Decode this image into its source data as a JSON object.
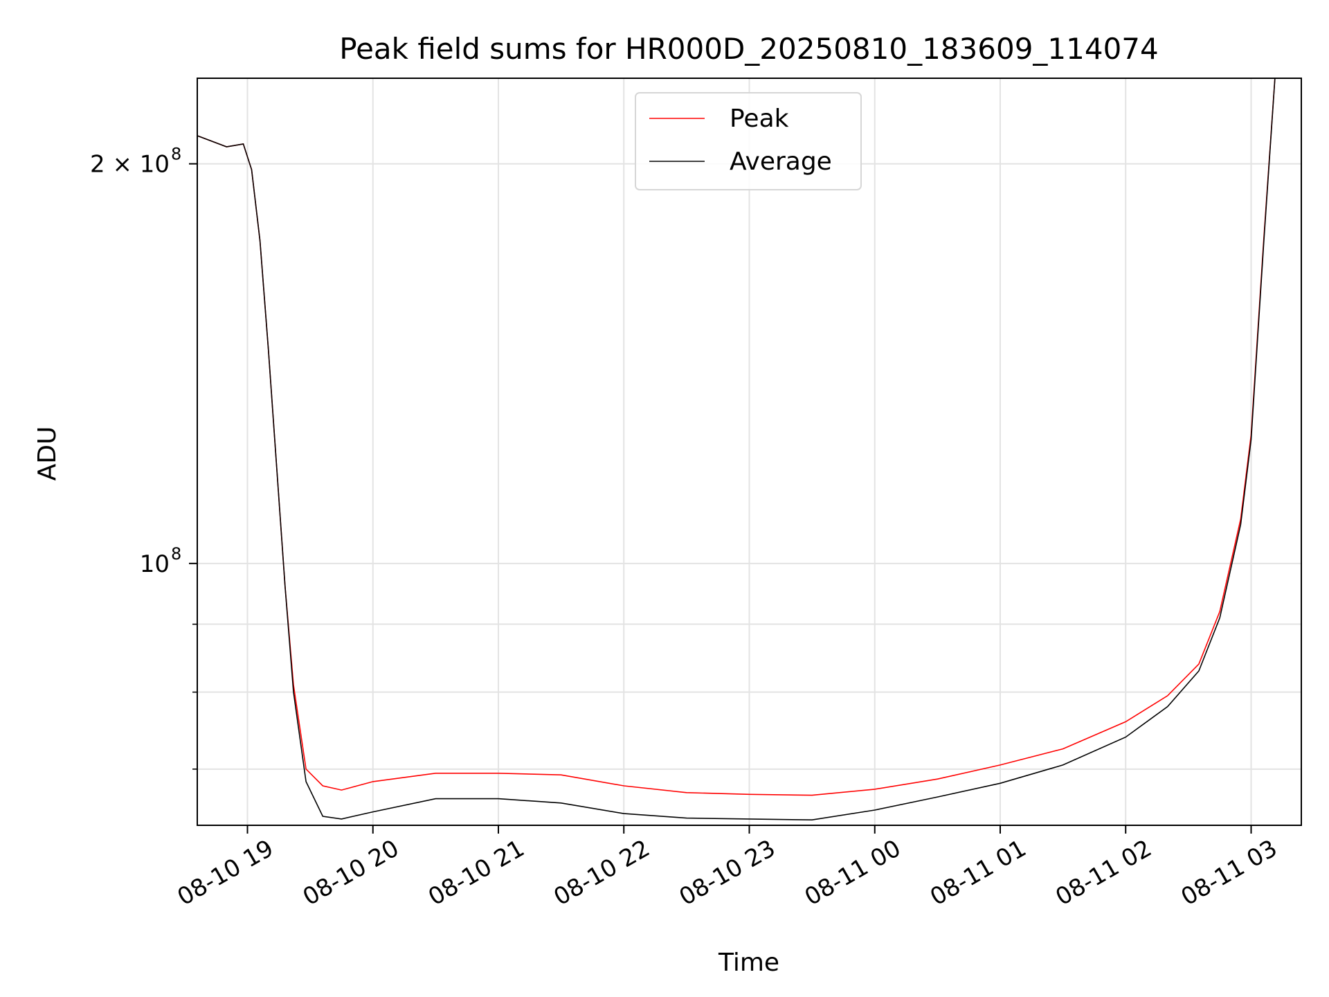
{
  "chart_data": {
    "type": "line",
    "title": "Peak field sums for HR000D_20250810_183609_114074",
    "xlabel": "Time",
    "ylabel": "ADU",
    "yscale": "log",
    "ylim": [
      63500000,
      232000000
    ],
    "xlim": [
      "2025-08-10 18:36",
      "2025-08-11 03:24"
    ],
    "grid": true,
    "legend": "upper center",
    "x_ticks": [
      "08-10 19",
      "08-10 20",
      "08-10 21",
      "08-10 22",
      "08-10 23",
      "08-11 00",
      "08-11 01",
      "08-11 02",
      "08-11 03"
    ],
    "y_tick_major": [
      {
        "value": 100000000,
        "base": "10",
        "exp": "8"
      },
      {
        "value": 200000000,
        "base": "2 × 10",
        "exp": "8"
      }
    ],
    "y_tick_minor": [
      70000000,
      80000000,
      90000000
    ],
    "series": [
      {
        "name": "Peak",
        "color": "#ff0000",
        "x": [
          "2025-08-10 18:36",
          "2025-08-10 18:50",
          "2025-08-10 18:58",
          "2025-08-10 19:02",
          "2025-08-10 19:06",
          "2025-08-10 19:10",
          "2025-08-10 19:14",
          "2025-08-10 19:18",
          "2025-08-10 19:22",
          "2025-08-10 19:28",
          "2025-08-10 19:36",
          "2025-08-10 19:45",
          "2025-08-10 20:00",
          "2025-08-10 20:30",
          "2025-08-10 21:00",
          "2025-08-10 21:30",
          "2025-08-10 22:00",
          "2025-08-10 22:30",
          "2025-08-10 23:00",
          "2025-08-10 23:30",
          "2025-08-11 00:00",
          "2025-08-11 00:30",
          "2025-08-11 01:00",
          "2025-08-11 01:30",
          "2025-08-11 02:00",
          "2025-08-11 02:20",
          "2025-08-11 02:35",
          "2025-08-11 02:45",
          "2025-08-11 02:55",
          "2025-08-11 03:00",
          "2025-08-11 03:06",
          "2025-08-11 03:12"
        ],
        "y": [
          210000000,
          206000000,
          207000000,
          198000000,
          175000000,
          145000000,
          118000000,
          96000000,
          81000000,
          70000000,
          68000000,
          67500000,
          68500000,
          69500000,
          69500000,
          69300000,
          68000000,
          67200000,
          67000000,
          66900000,
          67600000,
          68800000,
          70500000,
          72500000,
          76000000,
          79500000,
          84000000,
          92000000,
          108000000,
          125000000,
          175000000,
          240000000
        ]
      },
      {
        "name": "Average",
        "color": "#000000",
        "x": [
          "2025-08-10 18:36",
          "2025-08-10 18:50",
          "2025-08-10 18:58",
          "2025-08-10 19:02",
          "2025-08-10 19:06",
          "2025-08-10 19:10",
          "2025-08-10 19:14",
          "2025-08-10 19:18",
          "2025-08-10 19:22",
          "2025-08-10 19:28",
          "2025-08-10 19:36",
          "2025-08-10 19:45",
          "2025-08-10 20:00",
          "2025-08-10 20:30",
          "2025-08-10 21:00",
          "2025-08-10 21:30",
          "2025-08-10 22:00",
          "2025-08-10 22:30",
          "2025-08-10 23:00",
          "2025-08-10 23:30",
          "2025-08-11 00:00",
          "2025-08-11 00:30",
          "2025-08-11 01:00",
          "2025-08-11 01:30",
          "2025-08-11 02:00",
          "2025-08-11 02:20",
          "2025-08-11 02:35",
          "2025-08-11 02:45",
          "2025-08-11 02:55",
          "2025-08-11 03:00",
          "2025-08-11 03:06",
          "2025-08-11 03:12"
        ],
        "y": [
          210000000,
          206000000,
          207000000,
          198000000,
          175000000,
          145000000,
          118000000,
          96000000,
          80000000,
          68500000,
          64500000,
          64200000,
          65000000,
          66500000,
          66500000,
          66000000,
          64800000,
          64300000,
          64200000,
          64100000,
          65200000,
          66700000,
          68300000,
          70500000,
          74000000,
          78000000,
          83000000,
          91000000,
          107000000,
          124000000,
          174000000,
          240000000
        ]
      }
    ]
  }
}
